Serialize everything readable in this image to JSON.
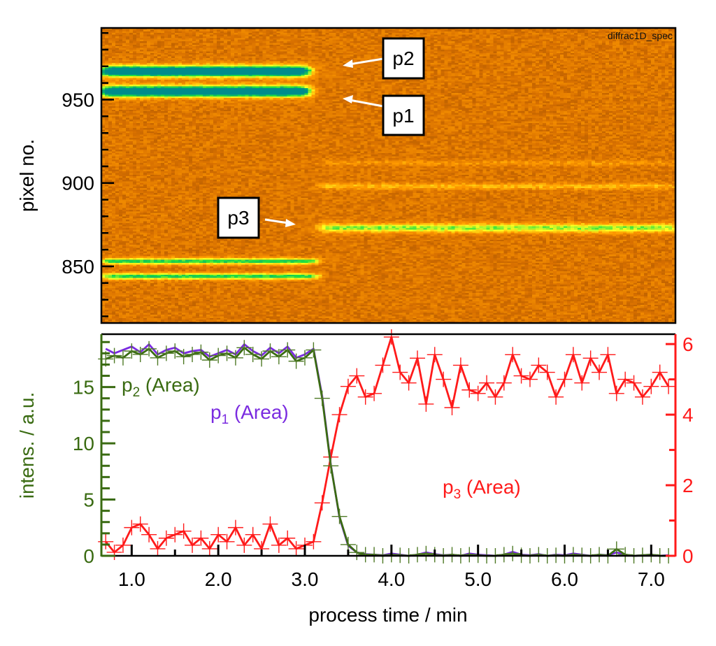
{
  "chart_data": [
    {
      "type": "heatmap",
      "watermark": "diffrac1D_spec",
      "ylabel": "pixel no.",
      "xlim": [
        0.65,
        7.28
      ],
      "ylim": [
        816,
        993
      ],
      "yticks": [
        850,
        900,
        950
      ],
      "colormap": [
        "#5e2c00",
        "#d87000",
        "#ff9a00",
        "#ffff20",
        "#20e040",
        "#008c8c"
      ],
      "bands": [
        {
          "pixel": 967,
          "width": 3.2,
          "amp": 1.0,
          "t_start": 0.65,
          "t_end": 3.05
        },
        {
          "pixel": 955,
          "width": 3.2,
          "amp": 1.0,
          "t_start": 0.65,
          "t_end": 3.05
        },
        {
          "pixel": 853,
          "width": 1.8,
          "amp": 0.55,
          "t_start": 0.65,
          "t_end": 3.15
        },
        {
          "pixel": 844,
          "width": 1.8,
          "amp": 0.55,
          "t_start": 0.65,
          "t_end": 3.15
        },
        {
          "pixel": 873,
          "width": 2.5,
          "amp": 0.42,
          "t_start": 3.15,
          "t_end": 7.28
        },
        {
          "pixel": 898,
          "width": 1.8,
          "amp": 0.18,
          "t_start": 3.15,
          "t_end": 7.28
        },
        {
          "pixel": 912,
          "width": 1.6,
          "amp": 0.1,
          "t_start": 3.15,
          "t_end": 7.28
        }
      ],
      "annotations": [
        {
          "label": "p2"
        },
        {
          "label": "p1"
        },
        {
          "label": "p3"
        }
      ]
    },
    {
      "type": "line",
      "xlabel": "process time / min",
      "ylabel_left": "intens. / a.u.",
      "xlim": [
        0.65,
        7.28
      ],
      "ylim_left": [
        0,
        19.7
      ],
      "ylim_right": [
        0,
        6.28
      ],
      "xticks": [
        "1.0",
        "2.0",
        "3.0",
        "4.0",
        "5.0",
        "6.0",
        "7.0"
      ],
      "yticks_left": [
        "0",
        "5",
        "10",
        "15"
      ],
      "yticks_right": [
        "0",
        "2",
        "4",
        "6"
      ],
      "grid": false,
      "x": [
        0.7,
        0.8,
        0.9,
        1.0,
        1.1,
        1.2,
        1.3,
        1.4,
        1.5,
        1.6,
        1.7,
        1.8,
        1.9,
        2.0,
        2.1,
        2.2,
        2.3,
        2.4,
        2.5,
        2.6,
        2.7,
        2.8,
        2.9,
        3.0,
        3.1,
        3.2,
        3.3,
        3.4,
        3.5,
        3.6,
        3.7,
        3.8,
        3.9,
        4.0,
        4.1,
        4.2,
        4.3,
        4.4,
        4.5,
        4.6,
        4.7,
        4.8,
        4.9,
        5.0,
        5.1,
        5.2,
        5.3,
        5.4,
        5.5,
        5.6,
        5.7,
        5.8,
        5.9,
        6.0,
        6.1,
        6.2,
        6.3,
        6.4,
        6.5,
        6.6,
        6.7,
        6.8,
        6.9,
        7.0,
        7.1,
        7.2
      ],
      "series": [
        {
          "name": "p1 (Area)",
          "label_main": "p",
          "label_sub": "1",
          "label_rest": " (Area)",
          "axis": "left",
          "color": "#7a2be0",
          "markers": false,
          "values": [
            18.4,
            18.0,
            18.3,
            18.6,
            18.1,
            18.8,
            17.9,
            18.3,
            18.5,
            18.0,
            18.2,
            18.3,
            17.7,
            18.0,
            18.3,
            17.9,
            18.8,
            18.2,
            17.8,
            18.5,
            18.0,
            18.6,
            17.6,
            17.9,
            18.4,
            14.2,
            8.1,
            3.4,
            0.9,
            0.3,
            0.15,
            0.1,
            0.05,
            0.2,
            0.1,
            0.0,
            0.1,
            0.3,
            0.15,
            0.05,
            0.1,
            0.0,
            0.2,
            0.1,
            0.05,
            0.0,
            0.1,
            0.35,
            0.1,
            0.05,
            0.15,
            0.0,
            0.1,
            0.05,
            0.2,
            0.1,
            0.0,
            0.1,
            0.05,
            0.3,
            0.1,
            0.0,
            0.05,
            0.1,
            0.0,
            0.05
          ]
        },
        {
          "name": "p2 (Area)",
          "label_main": "p",
          "label_sub": "2",
          "label_rest": " (Area)",
          "axis": "left",
          "color": "#3a6b12",
          "markers": true,
          "values": [
            17.5,
            17.8,
            17.6,
            18.2,
            17.9,
            18.4,
            17.6,
            18.0,
            18.2,
            17.7,
            17.9,
            18.1,
            17.4,
            17.8,
            18.0,
            17.6,
            18.5,
            17.9,
            17.5,
            18.2,
            17.7,
            18.3,
            17.3,
            17.6,
            18.3,
            14.0,
            8.0,
            3.5,
            1.0,
            0.3,
            0.1,
            0.1,
            0.0,
            0.1,
            0.05,
            0.0,
            0.1,
            0.2,
            0.1,
            0.0,
            0.1,
            0.0,
            0.1,
            0.05,
            0.0,
            0.0,
            0.1,
            0.2,
            0.05,
            0.0,
            0.1,
            0.0,
            0.05,
            0.0,
            0.1,
            0.05,
            0.0,
            0.1,
            0.0,
            0.6,
            0.1,
            0.0,
            0.05,
            0.1,
            0.0,
            0.0
          ]
        },
        {
          "name": "p3 (Area)",
          "label_main": "p",
          "label_sub": "3",
          "label_rest": " (Area)",
          "axis": "right",
          "color": "#ff1a1a",
          "markers": true,
          "values": [
            0.4,
            0.1,
            0.3,
            0.8,
            0.9,
            0.6,
            0.2,
            0.5,
            0.6,
            0.7,
            0.3,
            0.5,
            0.2,
            0.6,
            0.4,
            0.8,
            0.3,
            0.6,
            0.2,
            0.9,
            0.3,
            0.5,
            0.2,
            0.3,
            0.4,
            1.5,
            2.8,
            4.0,
            4.8,
            5.1,
            4.5,
            4.6,
            5.4,
            6.2,
            5.2,
            4.9,
            5.6,
            4.3,
            5.7,
            5.0,
            4.2,
            5.4,
            4.7,
            4.6,
            4.9,
            4.5,
            4.9,
            5.7,
            5.1,
            5.0,
            5.4,
            5.2,
            4.5,
            5.0,
            5.7,
            4.9,
            5.6,
            5.2,
            5.7,
            4.6,
            5.0,
            4.9,
            4.5,
            4.8,
            5.2,
            4.8
          ]
        }
      ]
    }
  ]
}
